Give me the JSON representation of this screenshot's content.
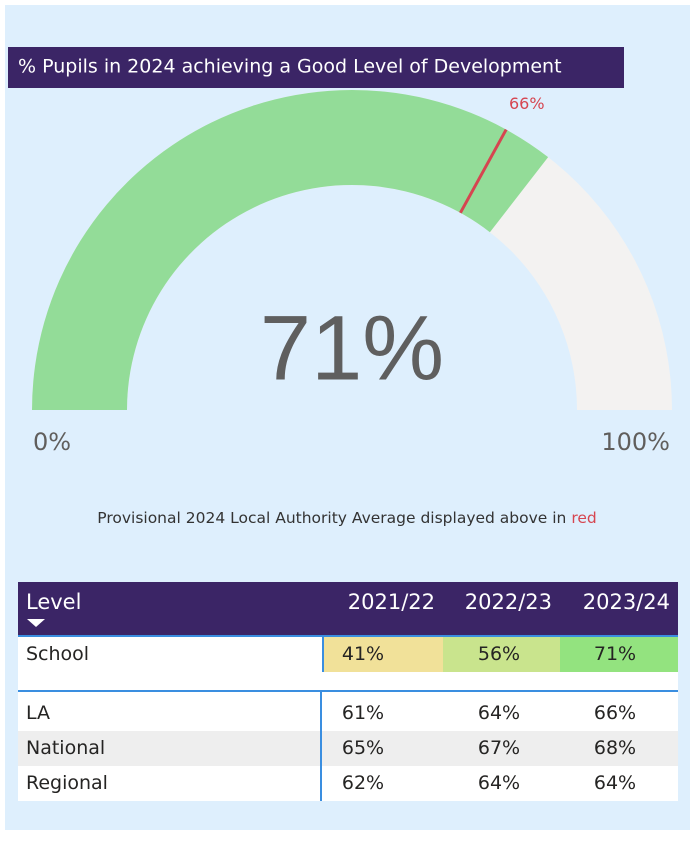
{
  "chart_data": {
    "type": "gauge",
    "title": "% Pupils in 2024 achieving a Good Level of Development",
    "value": 71,
    "value_label": "71%",
    "target": 66,
    "target_label": "66%",
    "min": 0,
    "min_label": "0%",
    "max": 100,
    "max_label": "100%",
    "color": "#93dc98",
    "track_color": "#f3f2f1",
    "target_color": "#d64550"
  },
  "note": {
    "text": "Provisional 2024 Local Authority Average displayed above in ",
    "highlight": "red"
  },
  "table": {
    "columns": [
      "Level",
      "2021/22",
      "2022/23",
      "2023/24"
    ],
    "rows": [
      {
        "label": "School",
        "cells": [
          "41%",
          "56%",
          "71%"
        ],
        "colors": [
          "#f1e199",
          "#c9e48d",
          "#93e37f"
        ]
      },
      {
        "label": "LA",
        "cells": [
          "61%",
          "64%",
          "66%"
        ]
      },
      {
        "label": "National",
        "cells": [
          "65%",
          "67%",
          "68%"
        ]
      },
      {
        "label": "Regional",
        "cells": [
          "62%",
          "64%",
          "64%"
        ]
      }
    ]
  }
}
